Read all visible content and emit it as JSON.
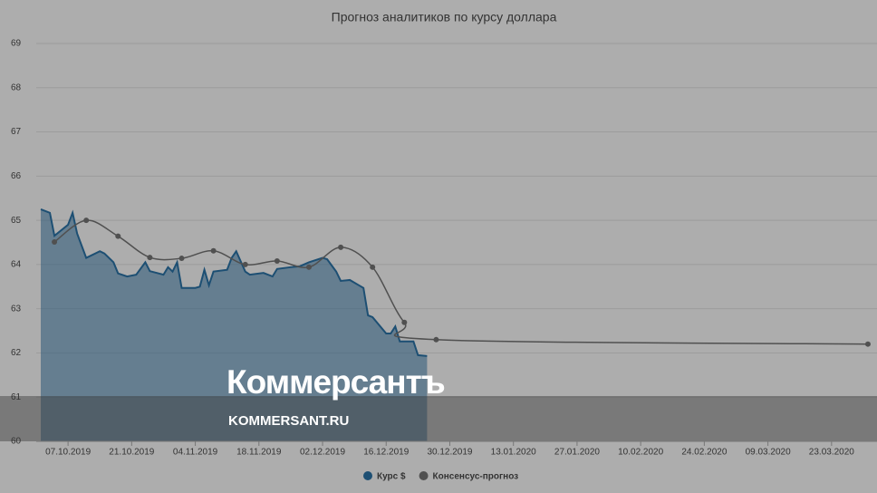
{
  "chart_data": {
    "type": "line",
    "title": "Прогноз аналитиков по курсу доллара",
    "xlim": [
      "30.09.2019",
      "02.04.2020"
    ],
    "xticks": [
      "07.10.2019",
      "21.10.2019",
      "04.11.2019",
      "18.11.2019",
      "02.12.2019",
      "16.12.2019",
      "30.12.2019",
      "13.01.2020",
      "27.01.2020",
      "10.02.2020",
      "24.02.2020",
      "09.03.2020",
      "23.03.2020"
    ],
    "ylim": [
      60,
      69
    ],
    "yticks": [
      60,
      61,
      62,
      63,
      64,
      65,
      66,
      67,
      68,
      69
    ],
    "grid": true,
    "series": [
      {
        "name": "Курс $",
        "color": "#1d4f73",
        "area": true,
        "x": [
          "01.10.2019",
          "03.10.2019",
          "04.10.2019",
          "07.10.2019",
          "08.10.2019",
          "09.10.2019",
          "11.10.2019",
          "14.10.2019",
          "15.10.2019",
          "17.10.2019",
          "18.10.2019",
          "20.10.2019",
          "22.10.2019",
          "24.10.2019",
          "25.10.2019",
          "28.10.2019",
          "29.10.2019",
          "30.10.2019",
          "31.10.2019",
          "01.11.2019",
          "04.11.2019",
          "05.11.2019",
          "06.11.2019",
          "07.11.2019",
          "08.11.2019",
          "11.11.2019",
          "12.11.2019",
          "13.11.2019",
          "15.11.2019",
          "16.11.2019",
          "19.11.2019",
          "21.11.2019",
          "22.11.2019",
          "25.11.2019",
          "27.11.2019",
          "29.11.2019",
          "02.12.2019",
          "03.12.2019",
          "05.12.2019",
          "06.12.2019",
          "08.12.2019",
          "10.12.2019",
          "11.12.2019",
          "12.12.2019",
          "13.12.2019",
          "16.12.2019",
          "17.12.2019",
          "18.12.2019",
          "19.12.2019",
          "22.12.2019",
          "23.12.2019",
          "25.12.2019"
        ],
        "values": [
          65.25,
          65.17,
          64.65,
          64.9,
          65.17,
          64.7,
          64.15,
          64.3,
          64.25,
          64.05,
          63.8,
          63.73,
          63.77,
          64.05,
          63.85,
          63.77,
          63.94,
          63.84,
          64.05,
          63.47,
          63.47,
          63.5,
          63.88,
          63.53,
          63.84,
          63.88,
          64.15,
          64.3,
          63.84,
          63.77,
          63.81,
          63.73,
          63.9,
          63.94,
          63.96,
          64.05,
          64.15,
          64.12,
          63.84,
          63.63,
          63.65,
          63.53,
          63.47,
          62.85,
          62.81,
          62.44,
          62.44,
          62.6,
          62.26,
          62.26,
          61.95,
          61.93
        ]
      },
      {
        "name": "Консенсус-прогноз",
        "color": "#505050",
        "markers": true,
        "smooth": true,
        "x": [
          "04.10.2019",
          "11.10.2019",
          "18.10.2019",
          "25.10.2019",
          "01.11.2019",
          "08.11.2019",
          "15.11.2019",
          "22.11.2019",
          "29.11.2019",
          "06.12.2019",
          "13.12.2019",
          "20.12.2019",
          "27.12.2019",
          "31.03.2020"
        ],
        "values": [
          64.51,
          65.0,
          64.64,
          64.16,
          64.14,
          64.31,
          64.0,
          64.08,
          63.94,
          64.39,
          63.94,
          62.69,
          62.3,
          62.2
        ]
      }
    ]
  },
  "watermark": {
    "logo": "Коммерсантъ",
    "url": "KOMMERSANT.RU"
  }
}
